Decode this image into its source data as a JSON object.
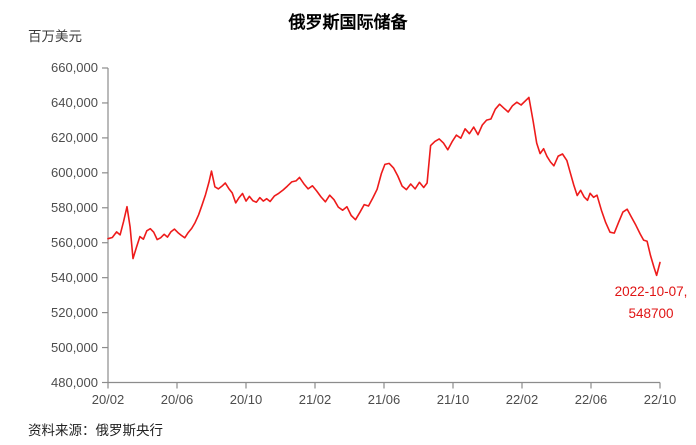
{
  "page": {
    "background": "#ffffff"
  },
  "chart_data": {
    "type": "line",
    "title": "俄罗斯国际储备",
    "ylabel": "百万美元",
    "xlabel": "",
    "source_note": "资料来源：俄罗斯央行",
    "grid": false,
    "legend_position": "none",
    "series_color": "#ee1b1b",
    "axis_color": "#8c8c8c",
    "tick_text_color": "#4d4d4d",
    "y_min": 480000,
    "y_max": 660000,
    "y_step": 20000,
    "y_tick_labels": [
      "660,000",
      "640,000",
      "620,000",
      "600,000",
      "580,000",
      "560,000",
      "540,000",
      "520,000",
      "500,000",
      "480,000"
    ],
    "x_tick_labels": [
      "20/02",
      "20/06",
      "20/10",
      "21/02",
      "21/06",
      "21/10",
      "22/02",
      "22/06",
      "22/10"
    ],
    "x_months_span": 32,
    "annotation": {
      "line1": "2022-10-07,",
      "line2": "548700",
      "color": "#e01414"
    },
    "series": [
      {
        "name": "俄罗斯国际储备",
        "x_unit": "months_since_2020_02",
        "points": [
          [
            0.0,
            562300
          ],
          [
            0.25,
            563000
          ],
          [
            0.5,
            566200
          ],
          [
            0.7,
            564500
          ],
          [
            0.9,
            572000
          ],
          [
            1.1,
            580600
          ],
          [
            1.28,
            569000
          ],
          [
            1.45,
            550900
          ],
          [
            1.65,
            557500
          ],
          [
            1.85,
            563500
          ],
          [
            2.05,
            562000
          ],
          [
            2.25,
            566800
          ],
          [
            2.45,
            568000
          ],
          [
            2.65,
            566000
          ],
          [
            2.85,
            561800
          ],
          [
            3.05,
            562800
          ],
          [
            3.25,
            564800
          ],
          [
            3.45,
            563200
          ],
          [
            3.65,
            566300
          ],
          [
            3.85,
            567800
          ],
          [
            4.05,
            565800
          ],
          [
            4.25,
            564200
          ],
          [
            4.45,
            562800
          ],
          [
            4.65,
            565800
          ],
          [
            4.85,
            568200
          ],
          [
            5.05,
            571500
          ],
          [
            5.25,
            576000
          ],
          [
            5.45,
            581500
          ],
          [
            5.65,
            587500
          ],
          [
            5.85,
            594500
          ],
          [
            6.0,
            601000
          ],
          [
            6.2,
            592000
          ],
          [
            6.4,
            590800
          ],
          [
            6.6,
            592300
          ],
          [
            6.8,
            594200
          ],
          [
            7.0,
            591000
          ],
          [
            7.2,
            588500
          ],
          [
            7.4,
            582800
          ],
          [
            7.6,
            585800
          ],
          [
            7.8,
            588200
          ],
          [
            8.0,
            583800
          ],
          [
            8.2,
            586500
          ],
          [
            8.4,
            584000
          ],
          [
            8.6,
            583200
          ],
          [
            8.8,
            585800
          ],
          [
            9.0,
            583800
          ],
          [
            9.2,
            585200
          ],
          [
            9.4,
            583600
          ],
          [
            9.65,
            586800
          ],
          [
            9.9,
            588300
          ],
          [
            10.15,
            590200
          ],
          [
            10.4,
            592400
          ],
          [
            10.65,
            594800
          ],
          [
            10.9,
            595400
          ],
          [
            11.1,
            597400
          ],
          [
            11.35,
            593800
          ],
          [
            11.6,
            590800
          ],
          [
            11.85,
            592600
          ],
          [
            12.1,
            589600
          ],
          [
            12.35,
            586200
          ],
          [
            12.6,
            583400
          ],
          [
            12.85,
            587200
          ],
          [
            13.1,
            584600
          ],
          [
            13.35,
            580400
          ],
          [
            13.6,
            578600
          ],
          [
            13.85,
            580600
          ],
          [
            14.1,
            575600
          ],
          [
            14.35,
            573200
          ],
          [
            14.6,
            577400
          ],
          [
            14.85,
            581800
          ],
          [
            15.1,
            581000
          ],
          [
            15.35,
            585600
          ],
          [
            15.6,
            590600
          ],
          [
            15.85,
            599600
          ],
          [
            16.05,
            604800
          ],
          [
            16.3,
            605400
          ],
          [
            16.55,
            602800
          ],
          [
            16.8,
            598200
          ],
          [
            17.05,
            592400
          ],
          [
            17.3,
            590400
          ],
          [
            17.55,
            593600
          ],
          [
            17.8,
            590800
          ],
          [
            18.05,
            594600
          ],
          [
            18.3,
            591600
          ],
          [
            18.5,
            594200
          ],
          [
            18.7,
            615600
          ],
          [
            18.95,
            618000
          ],
          [
            19.2,
            619400
          ],
          [
            19.45,
            617000
          ],
          [
            19.7,
            613200
          ],
          [
            19.95,
            617800
          ],
          [
            20.2,
            621600
          ],
          [
            20.45,
            619800
          ],
          [
            20.7,
            625200
          ],
          [
            20.95,
            622400
          ],
          [
            21.2,
            626200
          ],
          [
            21.45,
            621800
          ],
          [
            21.7,
            627400
          ],
          [
            21.95,
            630200
          ],
          [
            22.2,
            630800
          ],
          [
            22.45,
            636400
          ],
          [
            22.7,
            639300
          ],
          [
            22.95,
            637000
          ],
          [
            23.2,
            634800
          ],
          [
            23.45,
            638400
          ],
          [
            23.7,
            640400
          ],
          [
            23.95,
            638800
          ],
          [
            24.4,
            643200
          ],
          [
            24.65,
            629400
          ],
          [
            24.85,
            617000
          ],
          [
            25.05,
            611000
          ],
          [
            25.25,
            613800
          ],
          [
            25.45,
            609400
          ],
          [
            25.65,
            606200
          ],
          [
            25.85,
            604000
          ],
          [
            26.1,
            609600
          ],
          [
            26.35,
            610800
          ],
          [
            26.6,
            607000
          ],
          [
            26.8,
            600000
          ],
          [
            27.0,
            593000
          ],
          [
            27.2,
            587000
          ],
          [
            27.4,
            590000
          ],
          [
            27.6,
            586200
          ],
          [
            27.8,
            584300
          ],
          [
            27.95,
            588300
          ],
          [
            28.15,
            586000
          ],
          [
            28.35,
            587200
          ],
          [
            28.6,
            578600
          ],
          [
            28.85,
            571500
          ],
          [
            29.1,
            566000
          ],
          [
            29.35,
            565500
          ],
          [
            29.6,
            571700
          ],
          [
            29.85,
            577500
          ],
          [
            30.1,
            579200
          ],
          [
            30.35,
            574600
          ],
          [
            30.6,
            570000
          ],
          [
            30.85,
            565000
          ],
          [
            31.05,
            561500
          ],
          [
            31.25,
            560800
          ],
          [
            31.45,
            552700
          ],
          [
            31.65,
            545900
          ],
          [
            31.8,
            541300
          ],
          [
            32.0,
            548700
          ]
        ]
      }
    ]
  }
}
